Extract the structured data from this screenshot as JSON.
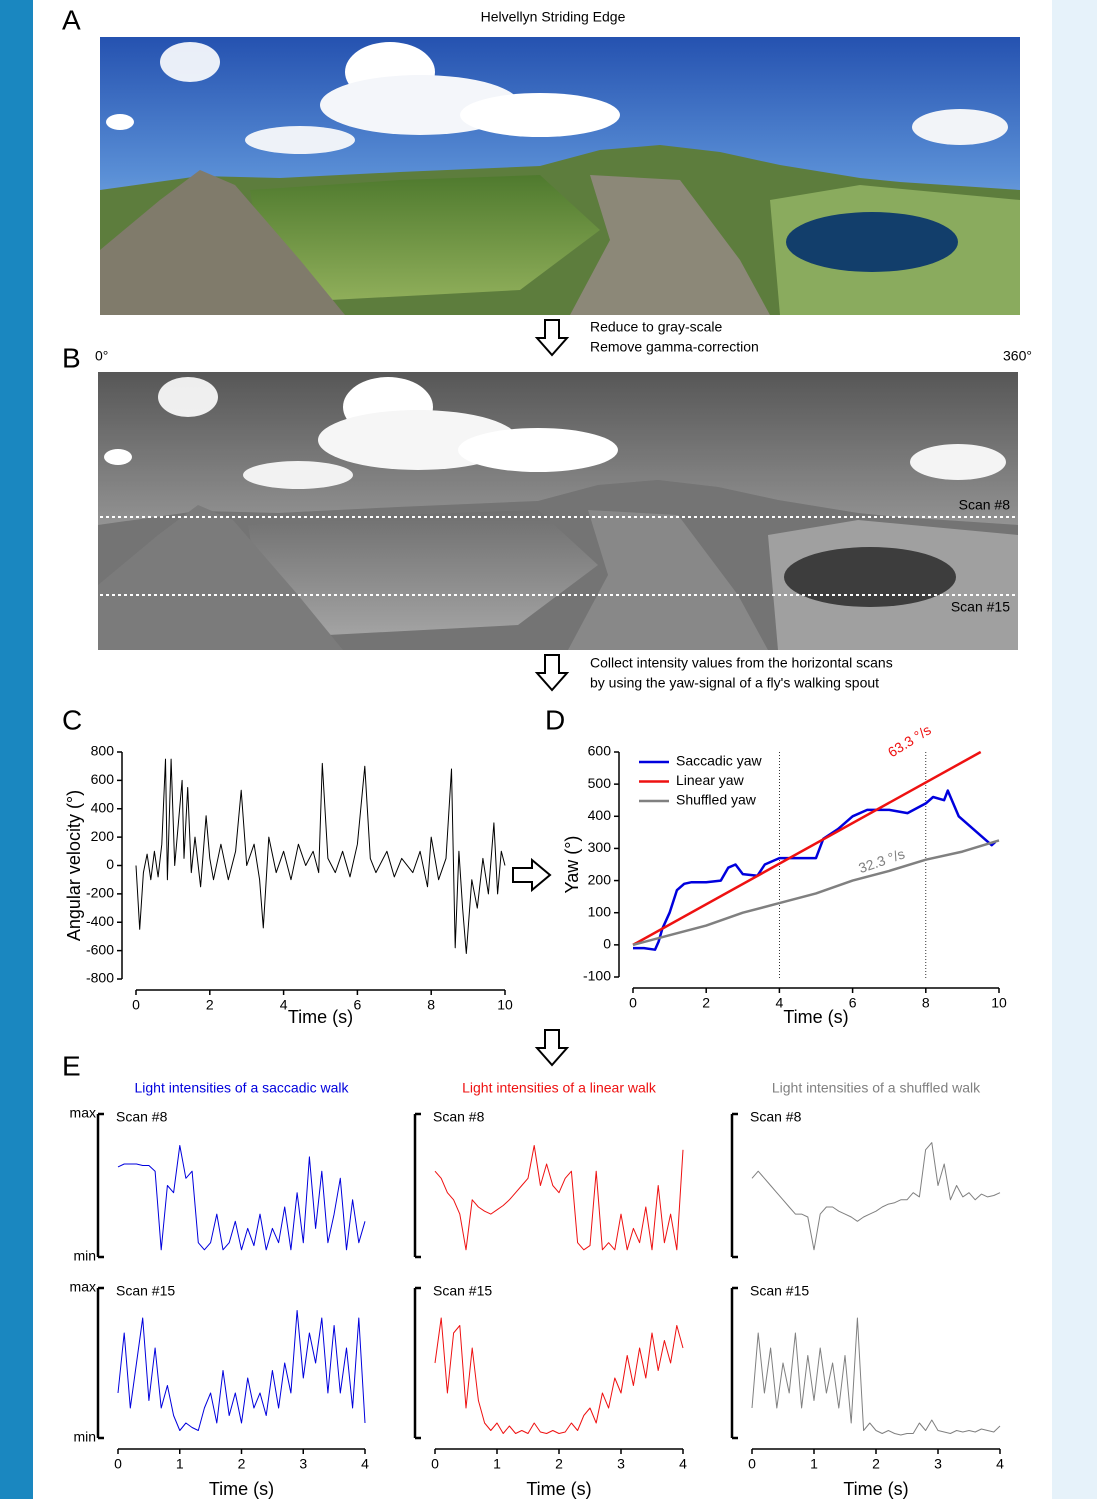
{
  "panel_labels": [
    "A",
    "B",
    "C",
    "D",
    "E"
  ],
  "figure": {
    "photo_title": "Helvellyn Striding Edge",
    "step_1": [
      "Reduce to gray-scale",
      "Remove gamma-correction"
    ],
    "angle_start": "0°",
    "angle_end": "360°",
    "scan_labels": [
      "Scan #8",
      "Scan #15"
    ],
    "step_2": [
      "Collect intensity values from the horizontal scans",
      "by using the yaw-signal of a fly's walking spout"
    ]
  },
  "chart_data": [
    {
      "type": "line",
      "xlabel": "Time (s)",
      "ylabel": "Angular velocity (°)",
      "color": "#000000",
      "x": [
        0,
        0.1,
        0.2,
        0.3,
        0.4,
        0.5,
        0.6,
        0.7,
        0.8,
        0.85,
        0.95,
        1.05,
        1.15,
        1.25,
        1.3,
        1.4,
        1.5,
        1.6,
        1.75,
        1.9,
        2.0,
        2.1,
        2.3,
        2.5,
        2.7,
        2.85,
        3.0,
        3.2,
        3.35,
        3.45,
        3.6,
        3.8,
        4.0,
        4.2,
        4.4,
        4.6,
        4.8,
        4.95,
        5.05,
        5.2,
        5.4,
        5.6,
        5.8,
        6.0,
        6.2,
        6.35,
        6.5,
        6.8,
        7.0,
        7.2,
        7.5,
        7.7,
        7.9,
        8.0,
        8.2,
        8.4,
        8.55,
        8.65,
        8.75,
        8.85,
        8.95,
        9.1,
        9.25,
        9.4,
        9.55,
        9.7,
        9.8,
        9.9,
        10.0
      ],
      "values": [
        0,
        -450,
        -50,
        80,
        -100,
        100,
        -80,
        150,
        750,
        -100,
        750,
        0,
        300,
        600,
        50,
        550,
        -50,
        200,
        -150,
        350,
        50,
        -100,
        150,
        -100,
        100,
        530,
        0,
        150,
        -100,
        -440,
        200,
        -50,
        100,
        -100,
        150,
        0,
        100,
        -50,
        720,
        50,
        -50,
        100,
        -80,
        150,
        700,
        50,
        -50,
        100,
        -80,
        50,
        -50,
        100,
        -150,
        200,
        -100,
        50,
        680,
        -580,
        100,
        -300,
        -620,
        -100,
        -300,
        50,
        -200,
        300,
        -200,
        100,
        0
      ],
      "xlim": [
        0,
        10
      ],
      "xticks": [
        0,
        2,
        4,
        6,
        8,
        10
      ],
      "ylim": [
        -800,
        800
      ],
      "yticks": [
        -800,
        -600,
        -400,
        -200,
        0,
        200,
        400,
        600,
        800
      ]
    },
    {
      "type": "line",
      "xlabel": "Time (s)",
      "ylabel": "Yaw (°)",
      "legend": "upper left",
      "vlines": [
        4,
        8
      ],
      "annotations": [
        "63.3 °/s",
        "32.3 °/s"
      ],
      "series": [
        {
          "name": "Saccadic yaw",
          "color": "#0000dd",
          "x": [
            0,
            0.3,
            0.6,
            0.7,
            0.8,
            1.0,
            1.2,
            1.4,
            1.6,
            2.0,
            2.4,
            2.6,
            2.8,
            3.0,
            3.4,
            3.6,
            4.0,
            4.4,
            5.0,
            5.2,
            5.6,
            6.0,
            6.4,
            7.0,
            7.5,
            8.0,
            8.2,
            8.5,
            8.6,
            8.9,
            9.2,
            9.6,
            9.8,
            9.9
          ],
          "values": [
            -10,
            -10,
            -15,
            10,
            50,
            100,
            170,
            190,
            195,
            195,
            200,
            240,
            250,
            220,
            215,
            250,
            270,
            270,
            270,
            330,
            360,
            400,
            420,
            420,
            410,
            440,
            460,
            450,
            480,
            400,
            370,
            330,
            310,
            320
          ]
        },
        {
          "name": "Linear yaw",
          "color": "#ee1111",
          "x": [
            0,
            9.5
          ],
          "values": [
            0,
            600
          ]
        },
        {
          "name": "Shuffled yaw",
          "color": "#808080",
          "x": [
            0,
            1,
            2,
            3,
            4,
            5,
            6,
            7,
            8,
            9,
            10
          ],
          "values": [
            0,
            30,
            60,
            100,
            130,
            160,
            200,
            230,
            265,
            290,
            325
          ]
        }
      ],
      "xlim": [
        0,
        10
      ],
      "xticks": [
        0,
        2,
        4,
        6,
        8,
        10
      ],
      "ylim": [
        -100,
        600
      ],
      "yticks": [
        -100,
        0,
        100,
        200,
        300,
        400,
        500,
        600
      ]
    },
    {
      "type": "line",
      "title": "Light intensities of a saccadic walk",
      "subtitle": "Scan #8",
      "color": "#0000dd",
      "bracket": true,
      "x": [
        0,
        0.1,
        0.2,
        0.3,
        0.4,
        0.5,
        0.6,
        0.7,
        0.8,
        0.9,
        1.0,
        1.1,
        1.2,
        1.3,
        1.4,
        1.5,
        1.6,
        1.7,
        1.8,
        1.9,
        2.0,
        2.1,
        2.2,
        2.3,
        2.4,
        2.5,
        2.6,
        2.7,
        2.8,
        2.9,
        3.0,
        3.1,
        3.2,
        3.3,
        3.4,
        3.5,
        3.6,
        3.7,
        3.8,
        3.9,
        4.0
      ],
      "values": [
        0.63,
        0.65,
        0.65,
        0.65,
        0.64,
        0.64,
        0.6,
        0.05,
        0.5,
        0.45,
        0.78,
        0.55,
        0.6,
        0.1,
        0.05,
        0.1,
        0.3,
        0.05,
        0.1,
        0.25,
        0.05,
        0.2,
        0.08,
        0.3,
        0.05,
        0.2,
        0.1,
        0.35,
        0.05,
        0.45,
        0.1,
        0.7,
        0.2,
        0.6,
        0.1,
        0.3,
        0.55,
        0.05,
        0.4,
        0.1,
        0.25
      ],
      "xlim": [
        0,
        4
      ],
      "ylim": [
        0,
        1
      ],
      "yticks": [
        {
          "value": 0,
          "label": "min"
        },
        {
          "value": 1,
          "label": "max"
        }
      ]
    },
    {
      "type": "line",
      "title": "Light intensities of a linear walk",
      "subtitle": "Scan #8",
      "color": "#ee1111",
      "bracket": true,
      "x": [
        0,
        0.1,
        0.2,
        0.3,
        0.4,
        0.5,
        0.6,
        0.7,
        0.8,
        0.9,
        1.0,
        1.1,
        1.2,
        1.3,
        1.4,
        1.5,
        1.6,
        1.7,
        1.8,
        1.9,
        2.0,
        2.1,
        2.2,
        2.3,
        2.4,
        2.5,
        2.6,
        2.7,
        2.8,
        2.9,
        3.0,
        3.1,
        3.2,
        3.3,
        3.4,
        3.5,
        3.6,
        3.7,
        3.8,
        3.9,
        4.0
      ],
      "values": [
        0.6,
        0.55,
        0.45,
        0.4,
        0.3,
        0.05,
        0.4,
        0.35,
        0.32,
        0.3,
        0.33,
        0.36,
        0.4,
        0.45,
        0.5,
        0.55,
        0.78,
        0.5,
        0.65,
        0.5,
        0.45,
        0.55,
        0.6,
        0.1,
        0.05,
        0.08,
        0.6,
        0.05,
        0.1,
        0.05,
        0.3,
        0.05,
        0.2,
        0.1,
        0.35,
        0.05,
        0.5,
        0.1,
        0.3,
        0.05,
        0.75
      ],
      "xlim": [
        0,
        4
      ],
      "ylim": [
        0,
        1
      ]
    },
    {
      "type": "line",
      "title": "Light intensities of a shuffled walk",
      "subtitle": "Scan #8",
      "color": "#808080",
      "bracket": true,
      "x": [
        0,
        0.1,
        0.2,
        0.3,
        0.4,
        0.5,
        0.6,
        0.7,
        0.8,
        0.9,
        1.0,
        1.1,
        1.2,
        1.3,
        1.4,
        1.5,
        1.6,
        1.7,
        1.8,
        1.9,
        2.0,
        2.1,
        2.2,
        2.3,
        2.4,
        2.5,
        2.6,
        2.7,
        2.8,
        2.9,
        3.0,
        3.1,
        3.2,
        3.3,
        3.4,
        3.5,
        3.6,
        3.7,
        3.8,
        3.9,
        4.0
      ],
      "values": [
        0.55,
        0.6,
        0.55,
        0.5,
        0.45,
        0.4,
        0.35,
        0.3,
        0.3,
        0.28,
        0.05,
        0.3,
        0.35,
        0.35,
        0.32,
        0.3,
        0.28,
        0.25,
        0.28,
        0.3,
        0.32,
        0.35,
        0.37,
        0.38,
        0.4,
        0.4,
        0.45,
        0.42,
        0.75,
        0.8,
        0.5,
        0.65,
        0.4,
        0.5,
        0.42,
        0.45,
        0.4,
        0.44,
        0.42,
        0.43,
        0.45
      ],
      "xlim": [
        0,
        4
      ],
      "ylim": [
        0,
        1
      ]
    },
    {
      "type": "line",
      "subtitle": "Scan #15",
      "xlabel": "Time (s)",
      "color": "#0000dd",
      "bracket": true,
      "x": [
        0,
        0.1,
        0.2,
        0.3,
        0.4,
        0.5,
        0.6,
        0.7,
        0.8,
        0.9,
        1.0,
        1.1,
        1.2,
        1.3,
        1.4,
        1.5,
        1.6,
        1.7,
        1.8,
        1.9,
        2.0,
        2.1,
        2.2,
        2.3,
        2.4,
        2.5,
        2.6,
        2.7,
        2.8,
        2.9,
        3.0,
        3.1,
        3.2,
        3.3,
        3.4,
        3.5,
        3.6,
        3.7,
        3.8,
        3.9,
        4.0
      ],
      "values": [
        0.3,
        0.7,
        0.2,
        0.5,
        0.8,
        0.25,
        0.6,
        0.2,
        0.35,
        0.15,
        0.05,
        0.1,
        0.07,
        0.05,
        0.2,
        0.3,
        0.1,
        0.45,
        0.15,
        0.3,
        0.1,
        0.4,
        0.2,
        0.3,
        0.15,
        0.45,
        0.2,
        0.5,
        0.3,
        0.85,
        0.4,
        0.7,
        0.5,
        0.8,
        0.3,
        0.75,
        0.3,
        0.6,
        0.2,
        0.8,
        0.1
      ],
      "xlim": [
        0,
        4
      ],
      "xticks": [
        0,
        1,
        2,
        3,
        4
      ],
      "ylim": [
        0,
        1
      ],
      "yticks": [
        {
          "value": 0,
          "label": "min"
        },
        {
          "value": 1,
          "label": "max"
        }
      ]
    },
    {
      "type": "line",
      "subtitle": "Scan #15",
      "xlabel": "Time (s)",
      "color": "#ee1111",
      "bracket": true,
      "x": [
        0,
        0.1,
        0.2,
        0.3,
        0.4,
        0.5,
        0.6,
        0.7,
        0.8,
        0.9,
        1.0,
        1.1,
        1.2,
        1.3,
        1.4,
        1.5,
        1.6,
        1.7,
        1.8,
        1.9,
        2.0,
        2.1,
        2.2,
        2.3,
        2.4,
        2.5,
        2.6,
        2.7,
        2.8,
        2.9,
        3.0,
        3.1,
        3.2,
        3.3,
        3.4,
        3.5,
        3.6,
        3.7,
        3.8,
        3.9,
        4.0
      ],
      "values": [
        0.5,
        0.8,
        0.3,
        0.7,
        0.75,
        0.2,
        0.6,
        0.25,
        0.1,
        0.05,
        0.1,
        0.03,
        0.08,
        0.03,
        0.05,
        0.03,
        0.1,
        0.04,
        0.03,
        0.05,
        0.03,
        0.04,
        0.1,
        0.05,
        0.15,
        0.2,
        0.1,
        0.3,
        0.2,
        0.4,
        0.3,
        0.55,
        0.35,
        0.6,
        0.4,
        0.7,
        0.45,
        0.65,
        0.5,
        0.75,
        0.6
      ],
      "xlim": [
        0,
        4
      ],
      "xticks": [
        0,
        1,
        2,
        3,
        4
      ],
      "ylim": [
        0,
        1
      ]
    },
    {
      "type": "line",
      "subtitle": "Scan #15",
      "xlabel": "Time (s)",
      "color": "#808080",
      "bracket": true,
      "x": [
        0,
        0.1,
        0.2,
        0.3,
        0.4,
        0.5,
        0.6,
        0.7,
        0.8,
        0.9,
        1.0,
        1.1,
        1.2,
        1.3,
        1.4,
        1.5,
        1.6,
        1.7,
        1.8,
        1.9,
        2.0,
        2.1,
        2.2,
        2.3,
        2.4,
        2.5,
        2.6,
        2.7,
        2.8,
        2.9,
        3.0,
        3.1,
        3.2,
        3.3,
        3.4,
        3.5,
        3.6,
        3.7,
        3.8,
        3.9,
        4.0
      ],
      "values": [
        0.2,
        0.7,
        0.3,
        0.6,
        0.2,
        0.5,
        0.3,
        0.7,
        0.2,
        0.55,
        0.25,
        0.6,
        0.3,
        0.5,
        0.2,
        0.55,
        0.1,
        0.8,
        0.05,
        0.1,
        0.05,
        0.03,
        0.05,
        0.03,
        0.02,
        0.03,
        0.03,
        0.1,
        0.05,
        0.12,
        0.05,
        0.04,
        0.03,
        0.05,
        0.04,
        0.05,
        0.04,
        0.06,
        0.05,
        0.04,
        0.08
      ],
      "xlim": [
        0,
        4
      ],
      "xticks": [
        0,
        1,
        2,
        3,
        4
      ],
      "ylim": [
        0,
        1
      ]
    }
  ]
}
